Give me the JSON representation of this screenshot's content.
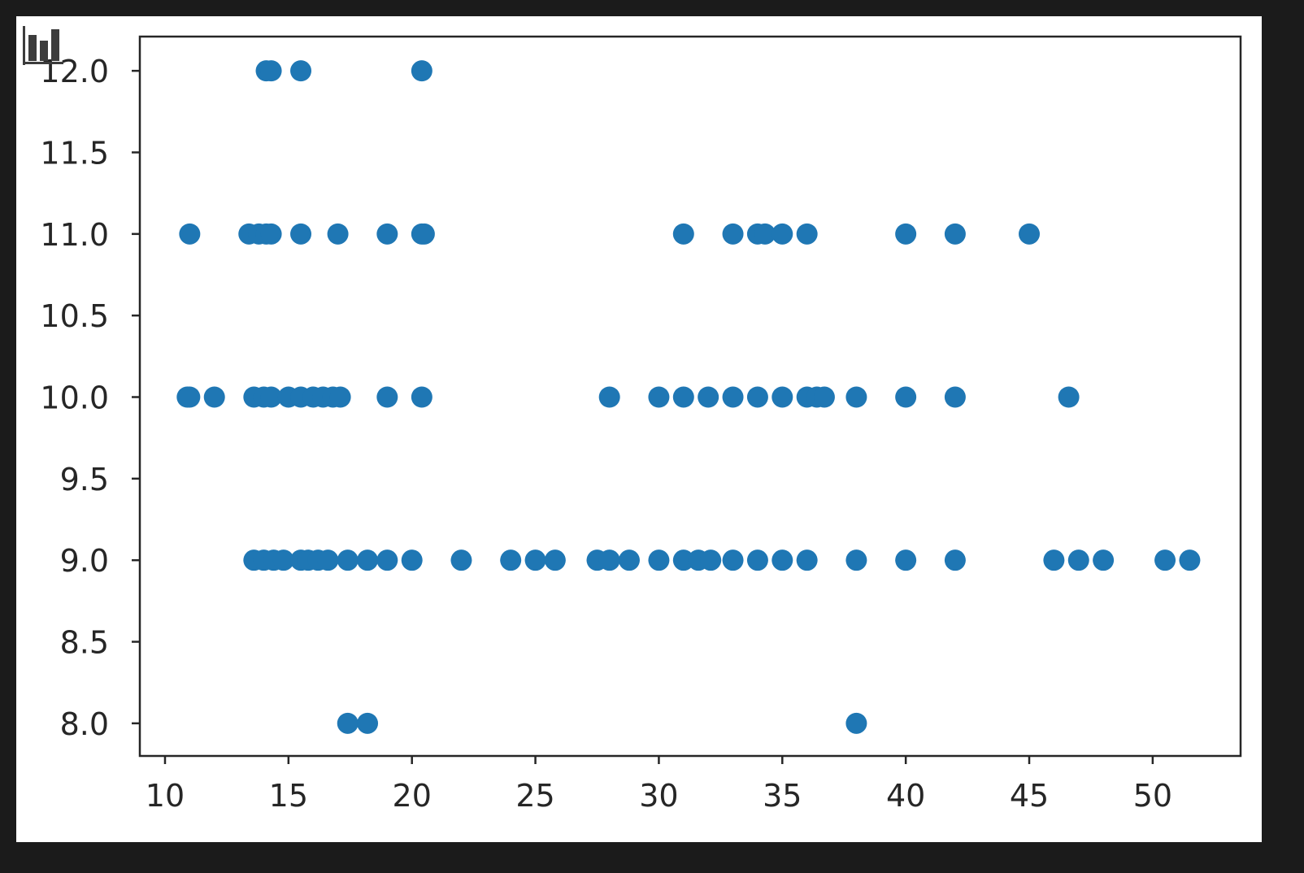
{
  "toolbar": {
    "icon": "bar-chart-icon"
  },
  "chart_data": {
    "type": "scatter",
    "title": "",
    "xlabel": "",
    "ylabel": "",
    "xlim": [
      8.98,
      53.56
    ],
    "ylim": [
      7.8,
      12.21
    ],
    "xticks": [
      10,
      15,
      20,
      25,
      30,
      35,
      40,
      45,
      50
    ],
    "yticks": [
      8.0,
      8.5,
      9.0,
      9.5,
      10.0,
      10.5,
      11.0,
      11.5,
      12.0
    ],
    "xtick_labels": [
      "10",
      "15",
      "20",
      "25",
      "30",
      "35",
      "40",
      "45",
      "50"
    ],
    "ytick_labels": [
      "8.0",
      "8.5",
      "9.0",
      "9.5",
      "10.0",
      "10.5",
      "11.0",
      "11.5",
      "12.0"
    ],
    "grid": false,
    "marker_color": "#1f77b4",
    "series": [
      {
        "points": [
          [
            14.1,
            12
          ],
          [
            14.3,
            12
          ],
          [
            15.5,
            12
          ],
          [
            20.4,
            12
          ],
          [
            11,
            11
          ],
          [
            13.4,
            11
          ],
          [
            13.8,
            11
          ],
          [
            14.1,
            11
          ],
          [
            14.3,
            11
          ],
          [
            15.5,
            11
          ],
          [
            17,
            11
          ],
          [
            19,
            11
          ],
          [
            20.4,
            11
          ],
          [
            20.5,
            11
          ],
          [
            31,
            11
          ],
          [
            33,
            11
          ],
          [
            34,
            11
          ],
          [
            34.3,
            11
          ],
          [
            35,
            11
          ],
          [
            36,
            11
          ],
          [
            40,
            11
          ],
          [
            42,
            11
          ],
          [
            45,
            11
          ],
          [
            10.9,
            10
          ],
          [
            11,
            10
          ],
          [
            12,
            10
          ],
          [
            13.6,
            10
          ],
          [
            14,
            10
          ],
          [
            14.3,
            10
          ],
          [
            15,
            10
          ],
          [
            15.5,
            10
          ],
          [
            16,
            10
          ],
          [
            16.4,
            10
          ],
          [
            16.8,
            10
          ],
          [
            17.1,
            10
          ],
          [
            19,
            10
          ],
          [
            20.4,
            10
          ],
          [
            28,
            10
          ],
          [
            30,
            10
          ],
          [
            31,
            10
          ],
          [
            32,
            10
          ],
          [
            33,
            10
          ],
          [
            34,
            10
          ],
          [
            35,
            10
          ],
          [
            36,
            10
          ],
          [
            36.4,
            10
          ],
          [
            36.7,
            10
          ],
          [
            38,
            10
          ],
          [
            40,
            10
          ],
          [
            42,
            10
          ],
          [
            46.6,
            10
          ],
          [
            13.6,
            9
          ],
          [
            14,
            9
          ],
          [
            14.4,
            9
          ],
          [
            14.8,
            9
          ],
          [
            15.5,
            9
          ],
          [
            15.8,
            9
          ],
          [
            16.2,
            9
          ],
          [
            16.6,
            9
          ],
          [
            17.4,
            9
          ],
          [
            18.2,
            9
          ],
          [
            19,
            9
          ],
          [
            20,
            9
          ],
          [
            22,
            9
          ],
          [
            24,
            9
          ],
          [
            25,
            9
          ],
          [
            25.8,
            9
          ],
          [
            27.5,
            9
          ],
          [
            28,
            9
          ],
          [
            28.8,
            9
          ],
          [
            30,
            9
          ],
          [
            31,
            9
          ],
          [
            31.6,
            9
          ],
          [
            32.1,
            9
          ],
          [
            33,
            9
          ],
          [
            34,
            9
          ],
          [
            35,
            9
          ],
          [
            36,
            9
          ],
          [
            38,
            9
          ],
          [
            40,
            9
          ],
          [
            42,
            9
          ],
          [
            46,
            9
          ],
          [
            47,
            9
          ],
          [
            48,
            9
          ],
          [
            50.5,
            9
          ],
          [
            51.5,
            9
          ],
          [
            17.4,
            8
          ],
          [
            18.2,
            8
          ],
          [
            38,
            8
          ]
        ]
      }
    ]
  }
}
